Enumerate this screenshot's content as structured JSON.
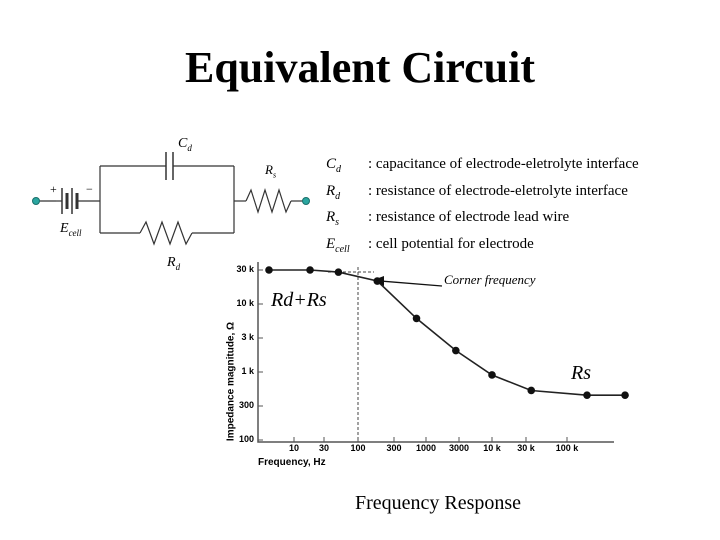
{
  "title": "Equivalent Circuit",
  "circuit": {
    "cap_label": "C",
    "cap_sub": "d",
    "rs_label": "R",
    "rs_sub": "s",
    "rd_label": "R",
    "rd_sub": "d",
    "ecell_label": "E",
    "ecell_sub": "cell",
    "plus": "+",
    "minus": "−"
  },
  "legend": [
    {
      "sym": "C",
      "sub": "d",
      "text": ": capacitance of electrode-eletrolyte interface"
    },
    {
      "sym": "R",
      "sub": "d",
      "text": ": resistance of electrode-eletrolyte interface"
    },
    {
      "sym": "R",
      "sub": "s",
      "text": ": resistance of electrode lead wire"
    },
    {
      "sym": "E",
      "sub": "cell",
      "text": ": cell potential for electrode"
    }
  ],
  "chart_data": {
    "type": "line",
    "xlabel": "Frequency, Hz",
    "ylabel": "Impedance magnitude, Ω",
    "x_ticks": [
      "10",
      "30",
      "100",
      "300",
      "1000",
      "3000",
      "10 k",
      "30 k",
      "100 k"
    ],
    "y_ticks": [
      "30 k",
      "10 k",
      "3 k",
      "1 k",
      "300",
      "100"
    ],
    "x_tick_values": [
      10,
      30,
      100,
      300,
      1000,
      3000,
      10000,
      30000,
      100000
    ],
    "y_tick_values": [
      30000,
      10000,
      3000,
      1000,
      300,
      100
    ],
    "points": [
      {
        "x": 4,
        "y": 30000
      },
      {
        "x": 18,
        "y": 30000
      },
      {
        "x": 50,
        "y": 28000
      },
      {
        "x": 180,
        "y": 21000
      },
      {
        "x": 700,
        "y": 6000
      },
      {
        "x": 2700,
        "y": 2000
      },
      {
        "x": 10000,
        "y": 900
      },
      {
        "x": 35000,
        "y": 520
      },
      {
        "x": 180000,
        "y": 440
      },
      {
        "x": 550000,
        "y": 440
      }
    ],
    "corner_frequency_x": 100,
    "annotations": {
      "corner": "Corner frequency",
      "low": "Rd+Rs",
      "high": "Rs"
    }
  },
  "caption": "Frequency Response"
}
